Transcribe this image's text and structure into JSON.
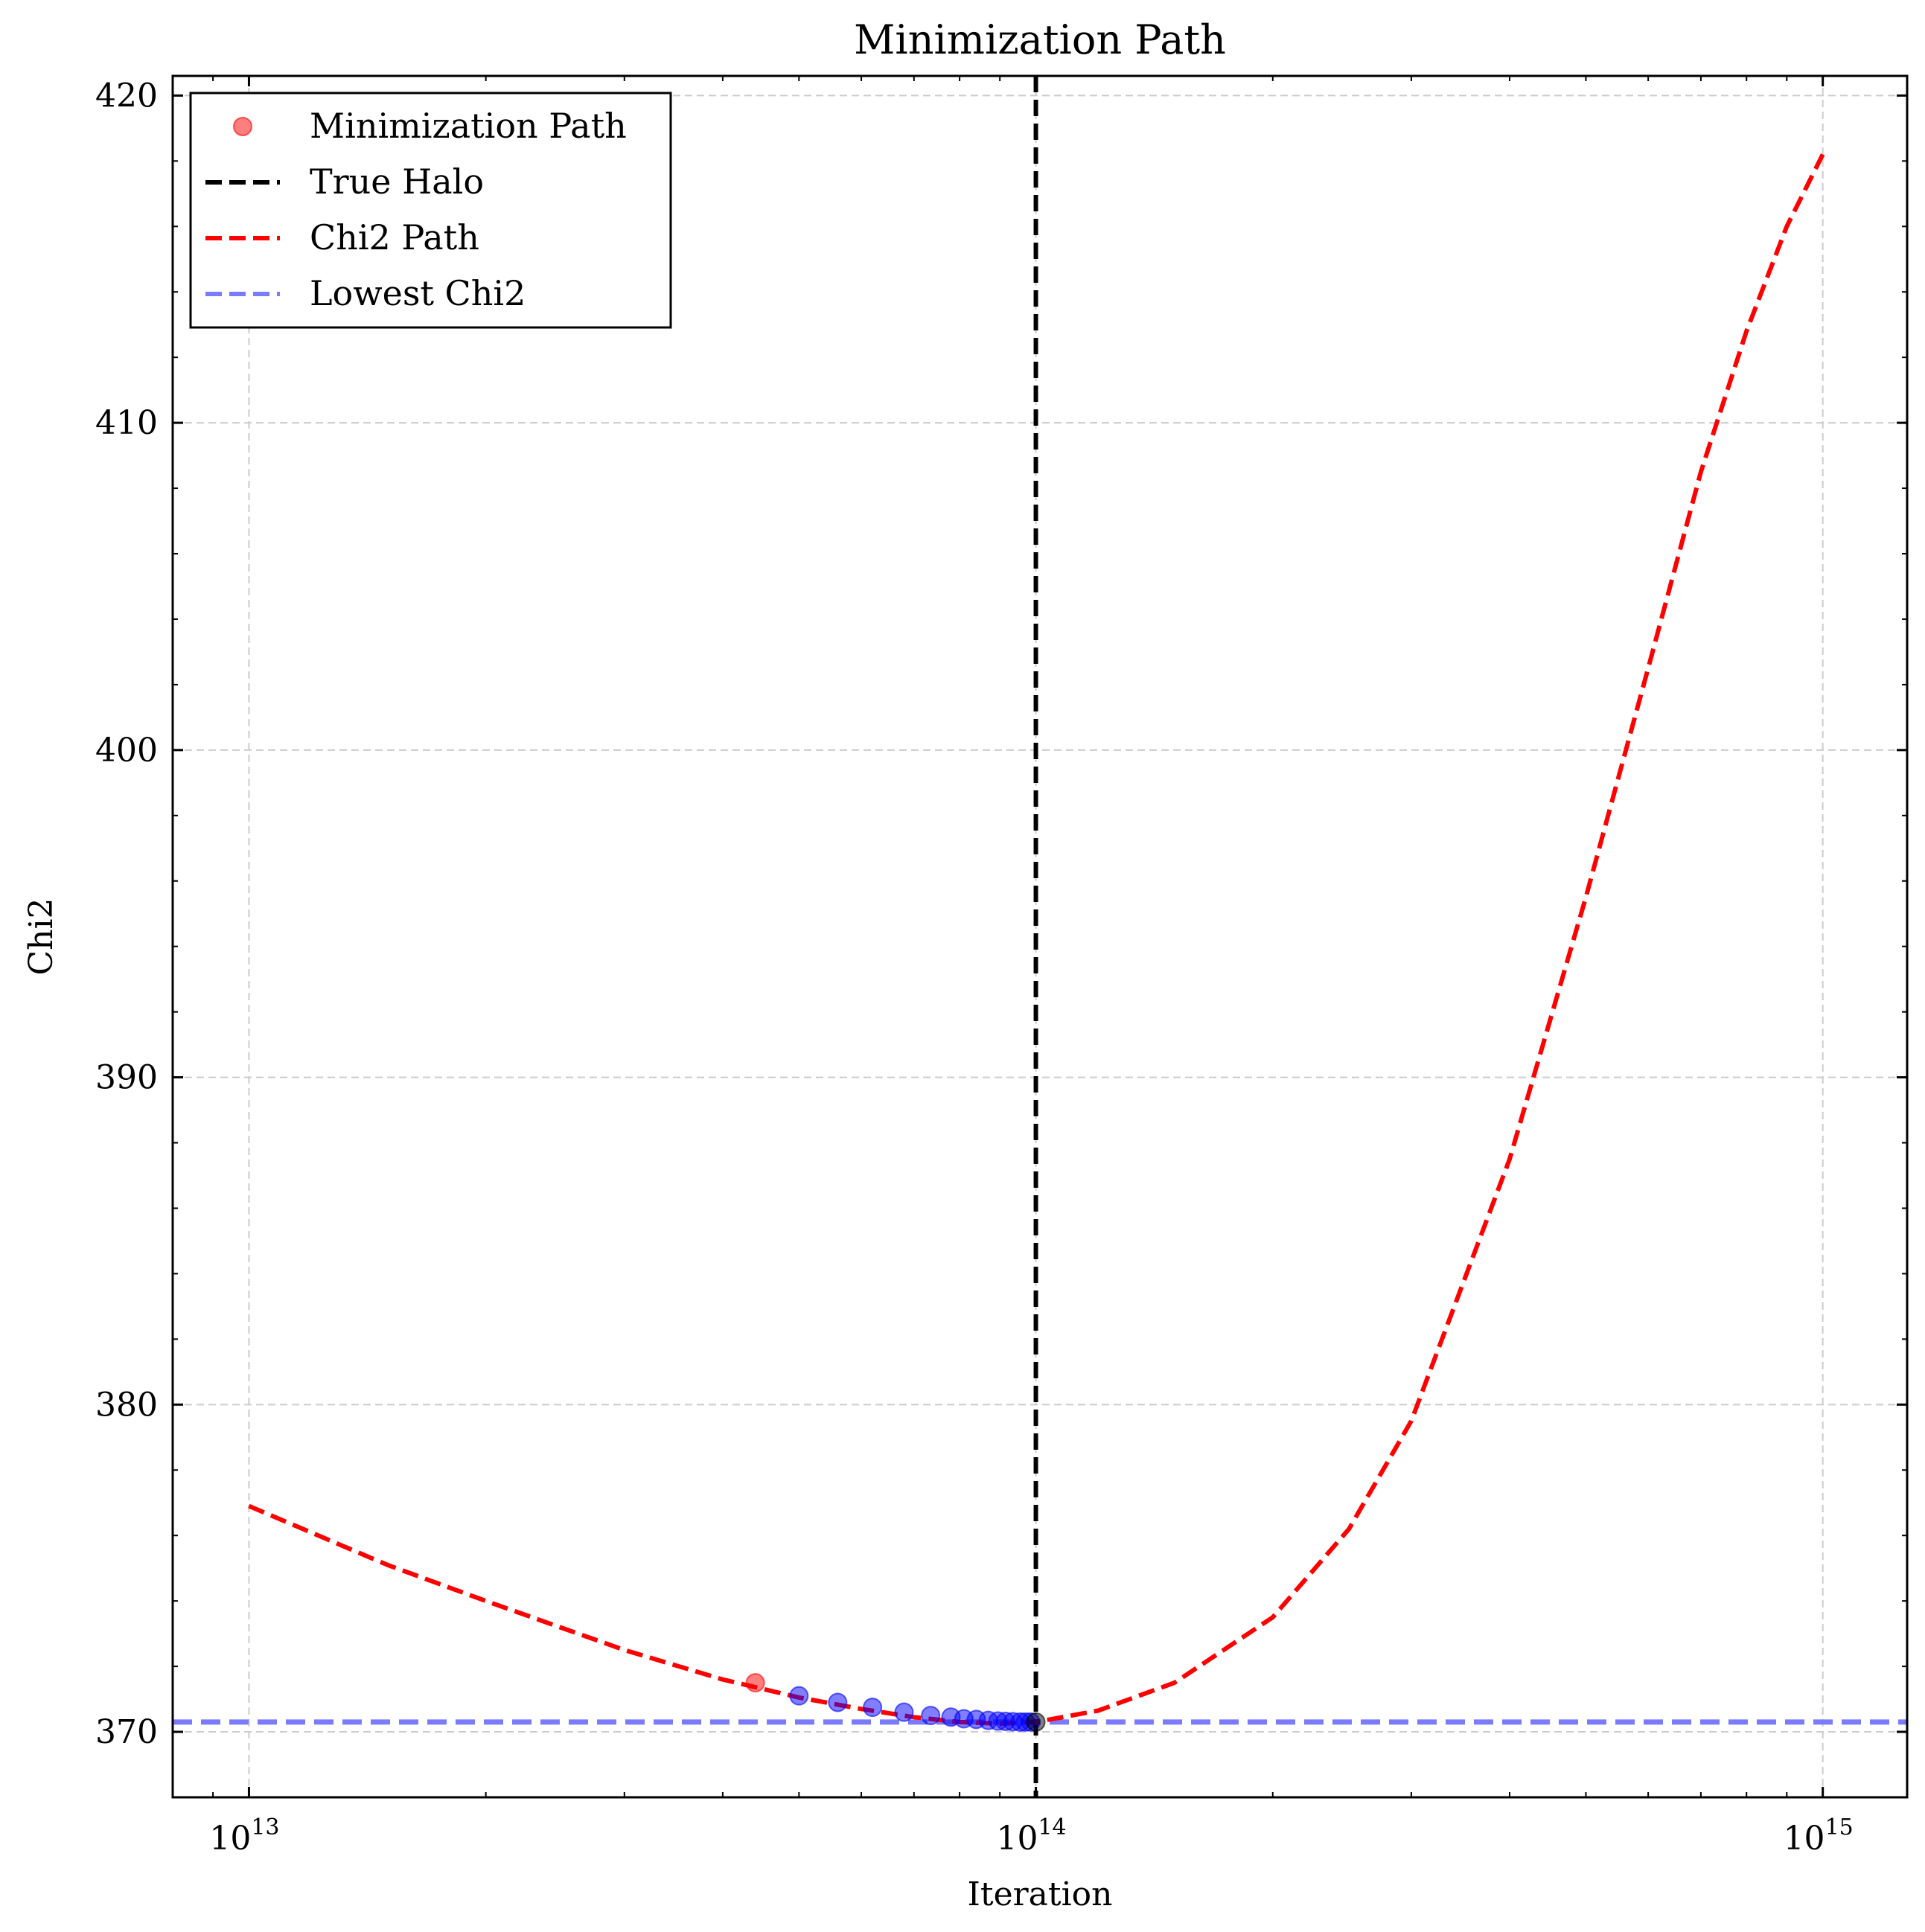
{
  "chart_data": {
    "type": "scatter",
    "title": "Minimization Path",
    "xlabel": "Iteration",
    "ylabel": "Chi2",
    "xscale": "log",
    "xlim": [
      8000000000000.0,
      1280000000000000.0
    ],
    "ylim": [
      368.0,
      420.6
    ],
    "yticks": [
      370,
      380,
      390,
      400,
      410,
      420
    ],
    "xticks": [
      {
        "value": 10000000000000.0,
        "base": "10",
        "exp": "13"
      },
      {
        "value": 100000000000000.0,
        "base": "10",
        "exp": "14"
      },
      {
        "value": 1000000000000000.0,
        "base": "10",
        "exp": "15"
      }
    ],
    "grid": true,
    "legend_position": "top-left",
    "series": [
      {
        "name": "Minimization Path",
        "kind": "scatter",
        "color": "#ff0000",
        "points": [
          {
            "x": 44000000000000.0,
            "y": 371.5,
            "color": "#ff0000"
          },
          {
            "x": 50000000000000.0,
            "y": 371.1,
            "color": "#0000ff"
          },
          {
            "x": 56000000000000.0,
            "y": 370.9,
            "color": "#0000ff"
          },
          {
            "x": 62000000000000.0,
            "y": 370.75,
            "color": "#0000ff"
          },
          {
            "x": 68000000000000.0,
            "y": 370.6,
            "color": "#0000ff"
          },
          {
            "x": 73500000000000.0,
            "y": 370.5,
            "color": "#0000ff"
          },
          {
            "x": 78000000000000.0,
            "y": 370.45,
            "color": "#0000ff"
          },
          {
            "x": 81000000000000.0,
            "y": 370.4,
            "color": "#0000ff"
          },
          {
            "x": 84000000000000.0,
            "y": 370.38,
            "color": "#0000ff"
          },
          {
            "x": 87000000000000.0,
            "y": 370.35,
            "color": "#0000ff"
          },
          {
            "x": 89500000000000.0,
            "y": 370.33,
            "color": "#0000ff"
          },
          {
            "x": 91500000000000.0,
            "y": 370.32,
            "color": "#0000ff"
          },
          {
            "x": 93500000000000.0,
            "y": 370.31,
            "color": "#0000ff"
          },
          {
            "x": 95500000000000.0,
            "y": 370.3,
            "color": "#0000ff"
          },
          {
            "x": 97000000000000.0,
            "y": 370.3,
            "color": "#0000ff"
          },
          {
            "x": 98500000000000.0,
            "y": 370.3,
            "color": "#0000ff"
          },
          {
            "x": 100000000000000.0,
            "y": 370.3,
            "color": "#000000"
          }
        ]
      },
      {
        "name": "True Halo",
        "kind": "vline",
        "x": 100000000000000.0,
        "color": "#000000"
      },
      {
        "name": "Chi2 Path",
        "kind": "line",
        "color": "#ff0000",
        "points": [
          {
            "x": 10000000000000.0,
            "y": 376.9
          },
          {
            "x": 15000000000000.0,
            "y": 375.1
          },
          {
            "x": 20000000000000.0,
            "y": 374.0
          },
          {
            "x": 30000000000000.0,
            "y": 372.5
          },
          {
            "x": 40000000000000.0,
            "y": 371.6
          },
          {
            "x": 50000000000000.0,
            "y": 371.05
          },
          {
            "x": 60000000000000.0,
            "y": 370.7
          },
          {
            "x": 70000000000000.0,
            "y": 370.45
          },
          {
            "x": 80000000000000.0,
            "y": 370.3
          },
          {
            "x": 90000000000000.0,
            "y": 370.25
          },
          {
            "x": 100000000000000.0,
            "y": 370.3
          },
          {
            "x": 120000000000000.0,
            "y": 370.65
          },
          {
            "x": 150000000000000.0,
            "y": 371.5
          },
          {
            "x": 200000000000000.0,
            "y": 373.5
          },
          {
            "x": 250000000000000.0,
            "y": 376.2
          },
          {
            "x": 300000000000000.0,
            "y": 379.5
          },
          {
            "x": 400000000000000.0,
            "y": 387.5
          },
          {
            "x": 500000000000000.0,
            "y": 395.5
          },
          {
            "x": 600000000000000.0,
            "y": 402.5
          },
          {
            "x": 700000000000000.0,
            "y": 408.5
          },
          {
            "x": 800000000000000.0,
            "y": 412.8
          },
          {
            "x": 900000000000000.0,
            "y": 416.0
          },
          {
            "x": 1000000000000000.0,
            "y": 418.2
          }
        ]
      },
      {
        "name": "Lowest Chi2",
        "kind": "hline",
        "y": 370.3,
        "color": "#7b7bff"
      }
    ]
  }
}
